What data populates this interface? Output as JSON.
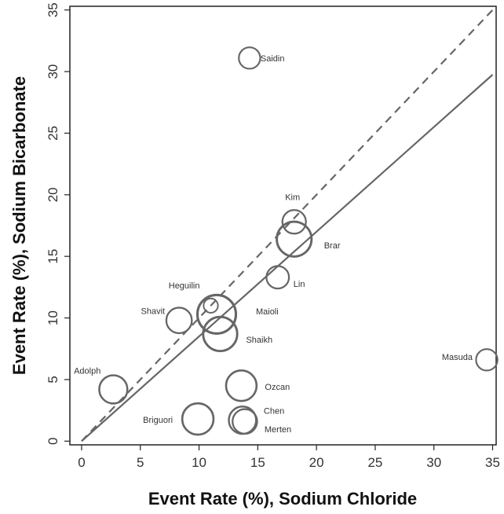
{
  "chart_data": {
    "type": "scatter",
    "xlabel": "Event Rate (%), Sodium Chloride",
    "ylabel": "Event Rate (%), Sodium Bicarbonate",
    "xlim": [
      -1,
      35.3
    ],
    "ylim": [
      -0.3,
      35.3
    ],
    "xticks": [
      "0",
      "5",
      "10",
      "15",
      "20",
      "25",
      "30",
      "35"
    ],
    "yticks": [
      "0",
      "5",
      "10",
      "15",
      "20",
      "25",
      "30",
      "35"
    ],
    "grid": false,
    "legend": "none",
    "reference_lines": [
      {
        "kind": "identity",
        "style": "dashed",
        "slope": 1,
        "intercept": 0
      },
      {
        "kind": "regression",
        "style": "solid",
        "slope": 0.85,
        "intercept": 0
      }
    ],
    "points": [
      {
        "label": "Saidin",
        "x": 14.3,
        "y": 31.1,
        "weight": 0.8
      },
      {
        "label": "Kim",
        "x": 18.1,
        "y": 17.8,
        "weight": 1.0
      },
      {
        "label": "Brar",
        "x": 18.1,
        "y": 16.4,
        "weight": 2.4
      },
      {
        "label": "Lin",
        "x": 16.7,
        "y": 13.3,
        "weight": 0.9
      },
      {
        "label": "Heguilin",
        "x": 11.0,
        "y": 11.0,
        "weight": 0.3
      },
      {
        "label": "Maioli",
        "x": 11.5,
        "y": 10.3,
        "weight": 3.0
      },
      {
        "label": "Shavit",
        "x": 8.3,
        "y": 9.8,
        "weight": 1.2
      },
      {
        "label": "Shaikh",
        "x": 11.8,
        "y": 8.7,
        "weight": 2.3
      },
      {
        "label": "Adolph",
        "x": 2.7,
        "y": 4.2,
        "weight": 1.5
      },
      {
        "label": "Ozcan",
        "x": 13.6,
        "y": 4.5,
        "weight": 1.8
      },
      {
        "label": "Briguori",
        "x": 9.9,
        "y": 1.8,
        "weight": 1.9
      },
      {
        "label": "Chen",
        "x": 13.7,
        "y": 1.7,
        "weight": 1.4
      },
      {
        "label": "Merten",
        "x": 13.9,
        "y": 1.6,
        "weight": 1.1
      },
      {
        "label": "Masuda",
        "x": 34.5,
        "y": 6.6,
        "weight": 0.8
      }
    ]
  }
}
